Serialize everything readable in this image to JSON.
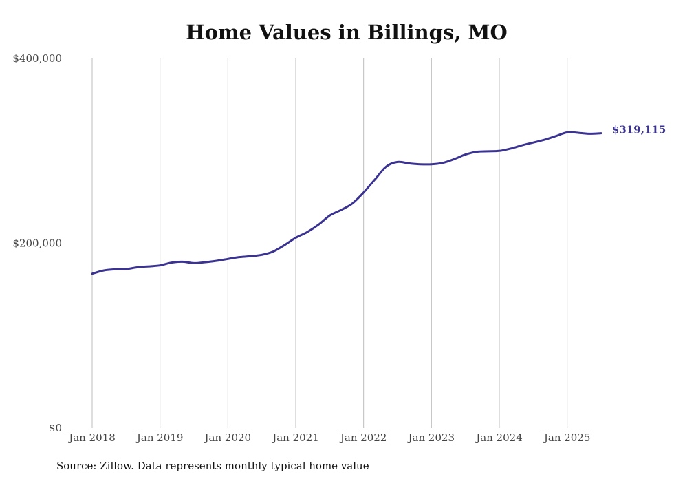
{
  "chart_data": {
    "type": "line",
    "title": "Home Values in Billings, MO",
    "source": "Source: Zillow. Data represents monthly typical home value",
    "xlabel": "",
    "ylabel": "",
    "ylim": [
      0,
      400000
    ],
    "y_ticks": [
      {
        "value": 0,
        "label": "$0"
      },
      {
        "value": 200000,
        "label": "$200,000"
      },
      {
        "value": 400000,
        "label": "$400,000"
      }
    ],
    "x_ticks": [
      {
        "value": "2018-01",
        "label": "Jan 2018"
      },
      {
        "value": "2019-01",
        "label": "Jan 2019"
      },
      {
        "value": "2020-01",
        "label": "Jan 2020"
      },
      {
        "value": "2021-01",
        "label": "Jan 2021"
      },
      {
        "value": "2022-01",
        "label": "Jan 2022"
      },
      {
        "value": "2023-01",
        "label": "Jan 2023"
      },
      {
        "value": "2024-01",
        "label": "Jan 2024"
      },
      {
        "value": "2025-01",
        "label": "Jan 2025"
      }
    ],
    "xlim": [
      "2018-01",
      "2025-07"
    ],
    "grid": {
      "vertical": true,
      "horizontal": false
    },
    "line_color": "#3a3391",
    "end_label": "$319,115",
    "series": [
      {
        "points": [
          [
            "2018-01",
            167000
          ],
          [
            "2018-03",
            170500
          ],
          [
            "2018-05",
            171800
          ],
          [
            "2018-07",
            172000
          ],
          [
            "2018-09",
            174000
          ],
          [
            "2018-11",
            175000
          ],
          [
            "2019-01",
            176000
          ],
          [
            "2019-03",
            179000
          ],
          [
            "2019-05",
            180000
          ],
          [
            "2019-07",
            178500
          ],
          [
            "2019-09",
            179500
          ],
          [
            "2019-11",
            181000
          ],
          [
            "2020-01",
            183000
          ],
          [
            "2020-03",
            185000
          ],
          [
            "2020-05",
            186000
          ],
          [
            "2020-07",
            187500
          ],
          [
            "2020-09",
            191000
          ],
          [
            "2020-11",
            198000
          ],
          [
            "2021-01",
            206000
          ],
          [
            "2021-03",
            212000
          ],
          [
            "2021-05",
            220000
          ],
          [
            "2021-07",
            230000
          ],
          [
            "2021-09",
            236000
          ],
          [
            "2021-11",
            243000
          ],
          [
            "2022-01",
            255000
          ],
          [
            "2022-03",
            269000
          ],
          [
            "2022-05",
            283000
          ],
          [
            "2022-07",
            288000
          ],
          [
            "2022-09",
            286500
          ],
          [
            "2022-11",
            285500
          ],
          [
            "2023-01",
            285500
          ],
          [
            "2023-03",
            287000
          ],
          [
            "2023-05",
            291000
          ],
          [
            "2023-07",
            296000
          ],
          [
            "2023-09",
            299000
          ],
          [
            "2023-11",
            299500
          ],
          [
            "2024-01",
            300000
          ],
          [
            "2024-03",
            302500
          ],
          [
            "2024-05",
            306000
          ],
          [
            "2024-07",
            309000
          ],
          [
            "2024-09",
            312000
          ],
          [
            "2024-11",
            316000
          ],
          [
            "2025-01",
            320000
          ],
          [
            "2025-03",
            319500
          ],
          [
            "2025-05",
            318500
          ],
          [
            "2025-07",
            319115
          ]
        ]
      }
    ]
  }
}
